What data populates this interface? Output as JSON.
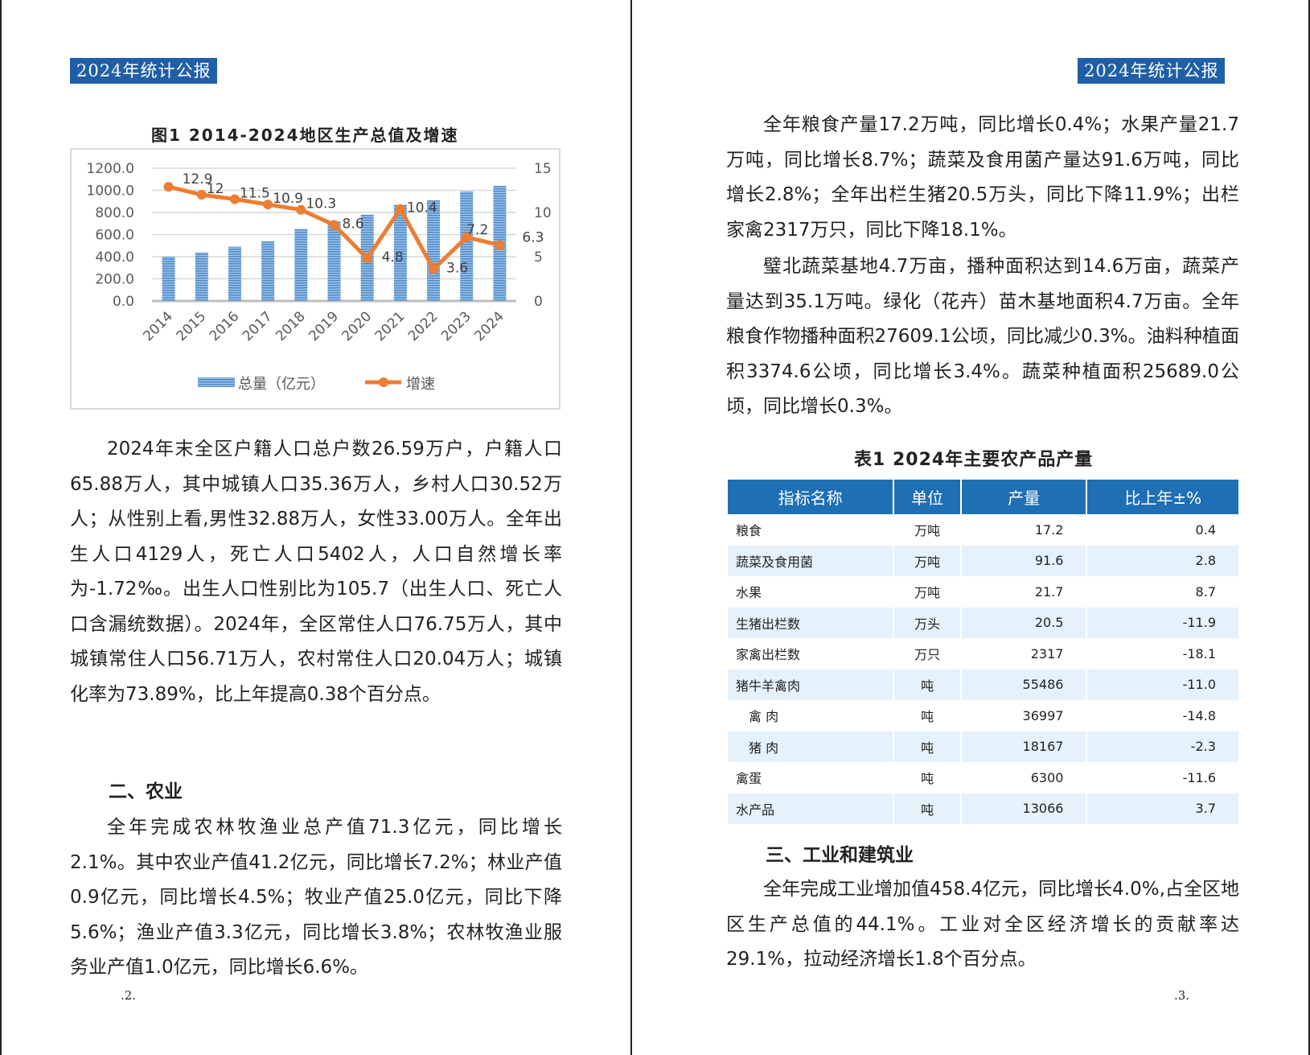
{
  "header_badge": "2024年统计公报",
  "left": {
    "figure_title": "图1  2014-2024地区生产总值及增速",
    "paragraphs": [
      "2024年末全区户籍人口总户数26.59万户，户籍人口65.88万人，其中城镇人口35.36万人，乡村人口30.52万人；从性别上看,男性32.88万人，女性33.00万人。全年出生人口4129人，死亡人口5402人，人口自然增长率为-1.72‰。出生人口性别比为105.7（出生人口、死亡人口含漏统数据）。2024年，全区常住人口76.75万人，其中城镇常住人口56.71万人，农村常住人口20.04万人；城镇化率为73.89%，比上年提高0.38个百分点。",
      "全年完成农林牧渔业总产值71.3亿元，同比增长2.1%。其中农业产值41.2亿元，同比增长7.2%；林业产值0.9亿元，同比增长4.5%；牧业产值25.0亿元，同比下降5.6%；渔业产值3.3亿元，同比增长3.8%；农林牧渔业服务业产值1.0亿元，同比增长6.6%。"
    ],
    "section_heading": "二、农业",
    "page_number": ".2."
  },
  "right": {
    "paragraphs": [
      "全年粮食产量17.2万吨，同比增长0.4%；水果产量21.7万吨，同比增长8.7%；蔬菜及食用菌产量达91.6万吨，同比增长2.8%；全年出栏生猪20.5万头，同比下降11.9%；出栏家禽2317万只，同比下降18.1%。",
      "璧北蔬菜基地4.7万亩，播种面积达到14.6万亩，蔬菜产量达到35.1万吨。绿化（花卉）苗木基地面积4.7万亩。全年粮食作物播种面积27609.1公顷，同比减少0.3%。油料种植面积3374.6公顷，同比增长3.4%。蔬菜种植面积25689.0公顷，同比增长0.3%。",
      "全年完成工业增加值458.4亿元，同比增长4.0%,占全区地区生产总值的44.1%。工业对全区经济增长的贡献率达29.1%，拉动经济增长1.8个百分点。"
    ],
    "table_title": "表1 2024年主要农产品产量",
    "table": {
      "headers": [
        "指标名称",
        "单位",
        "产量",
        "比上年±%"
      ],
      "rows": [
        [
          "粮食",
          "万吨",
          "17.2",
          "0.4"
        ],
        [
          "蔬菜及食用菌",
          "万吨",
          "91.6",
          "2.8"
        ],
        [
          "水果",
          "万吨",
          "21.7",
          "8.7"
        ],
        [
          "生猪出栏数",
          "万头",
          "20.5",
          "-11.9"
        ],
        [
          "家禽出栏数",
          "万只",
          "2317",
          "-18.1"
        ],
        [
          "猪牛羊禽肉",
          "吨",
          "55486",
          "-11.0"
        ],
        [
          "　禽 肉",
          "吨",
          "36997",
          "-14.8"
        ],
        [
          "　猪 肉",
          "吨",
          "18167",
          "-2.3"
        ],
        [
          "禽蛋",
          "吨",
          "6300",
          "-11.6"
        ],
        [
          "水产品",
          "吨",
          "13066",
          "3.7"
        ]
      ]
    },
    "section_heading": "三、工业和建筑业",
    "page_number": ".3."
  },
  "colors": {
    "badge": "#1f5fa8",
    "table_header": "#1f6fb5",
    "bar": "#5b9bd5",
    "line": "#ed7d31"
  },
  "chart_data": {
    "type": "bar+line",
    "title": "图1  2014-2024地区生产总值及增速",
    "categories": [
      "2014",
      "2015",
      "2016",
      "2017",
      "2018",
      "2019",
      "2020",
      "2021",
      "2022",
      "2023",
      "2024"
    ],
    "series": [
      {
        "name": "总量（亿元）",
        "type": "bar",
        "axis": "left",
        "values": [
          400,
          440,
          490,
          540,
          650,
          720,
          780,
          870,
          910,
          990,
          1040
        ]
      },
      {
        "name": "增速",
        "type": "line",
        "axis": "right",
        "values": [
          12.9,
          12,
          11.5,
          10.9,
          10.3,
          8.6,
          4.8,
          10.4,
          3.6,
          7.2,
          6.3
        ]
      }
    ],
    "left_ticks": [
      "0.0",
      "200.0",
      "400.0",
      "600.0",
      "800.0",
      "1000.0",
      "1200.0"
    ],
    "right_ticks": [
      "0",
      "5",
      "10",
      "15"
    ],
    "ylim_left": [
      0,
      1200
    ],
    "ylim_right": [
      0,
      15
    ],
    "grid": true,
    "legend": "bottom"
  }
}
